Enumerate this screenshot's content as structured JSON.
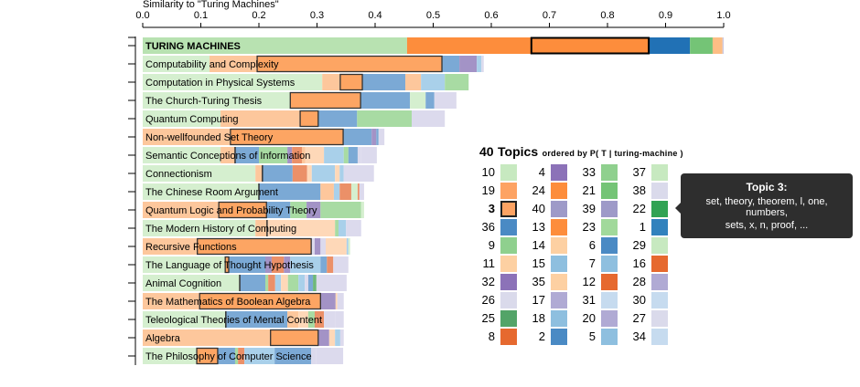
{
  "chart_data": {
    "type": "bar",
    "stacked": true,
    "orientation": "horizontal",
    "xlabel": "Similarity to \"Turing Machines\"",
    "xlim": [
      0,
      1
    ],
    "xticks": [
      "0.0",
      "0.1",
      "0.2",
      "0.3",
      "0.4",
      "0.5",
      "0.6",
      "0.7",
      "0.8",
      "0.9",
      "1.0"
    ],
    "highlight_topic": 3,
    "colors": {
      "lg": "#d5efcf",
      "lo": "#fdc79c",
      "t3": "#fda563",
      "b": "#7ba9d5",
      "p": "#a393c6",
      "lb": "#a9d0ea",
      "li": "#dcdaed",
      "g": "#a8dba3",
      "s": "#eb9068",
      "pe": "#fed8b8",
      "dg": "#6fb87b",
      "F_lg": "#b8e2b1",
      "F_o": "#fd8d3c",
      "F_b": "#2171b5",
      "F_g": "#74c476",
      "F_lo": "#fdbe85",
      "F_li": "#cbc9e2"
    },
    "rows": [
      {
        "label": "TURING MACHINES",
        "bold": true,
        "segments": [
          [
            0.455,
            "F_lg"
          ],
          [
            0.669,
            "F_o"
          ],
          [
            0.871,
            "F_o"
          ],
          [
            0.942,
            "F_b"
          ],
          [
            0.981,
            "F_g"
          ],
          [
            0.998,
            "F_lo"
          ],
          [
            1.0,
            "F_li"
          ]
        ],
        "t3": [
          0.669,
          0.871
        ]
      },
      {
        "label": "Computability and Complexity",
        "segments": [
          [
            0.115,
            "lg"
          ],
          [
            0.197,
            "lo"
          ],
          [
            0.515,
            "t3"
          ],
          [
            0.545,
            "b"
          ],
          [
            0.575,
            "p"
          ],
          [
            0.583,
            "lb"
          ],
          [
            0.587,
            "li"
          ]
        ],
        "t3": [
          0.197,
          0.515
        ]
      },
      {
        "label": "Computation in Physical Systems",
        "segments": [
          [
            0.309,
            "lg"
          ],
          [
            0.34,
            "lo"
          ],
          [
            0.378,
            "t3"
          ],
          [
            0.452,
            "b"
          ],
          [
            0.479,
            "lo"
          ],
          [
            0.52,
            "lb"
          ],
          [
            0.561,
            "g"
          ]
        ],
        "t3": [
          0.34,
          0.378
        ]
      },
      {
        "label": "The Church-Turing Thesis",
        "segments": [
          [
            0.254,
            "lg"
          ],
          [
            0.375,
            "t3"
          ],
          [
            0.46,
            "b"
          ],
          [
            0.487,
            "lg"
          ],
          [
            0.502,
            "b"
          ],
          [
            0.54,
            "li"
          ]
        ],
        "t3": [
          0.254,
          0.375
        ]
      },
      {
        "label": "Quantum Computing",
        "segments": [
          [
            0.134,
            "lg"
          ],
          [
            0.271,
            "lo"
          ],
          [
            0.302,
            "t3"
          ],
          [
            0.369,
            "b"
          ],
          [
            0.463,
            "g"
          ],
          [
            0.52,
            "li"
          ]
        ],
        "t3": [
          0.271,
          0.302
        ]
      },
      {
        "label": "Non-wellfounded Set Theory",
        "segments": [
          [
            0.151,
            "lo"
          ],
          [
            0.345,
            "t3"
          ],
          [
            0.394,
            "b"
          ],
          [
            0.402,
            "p"
          ],
          [
            0.406,
            "b"
          ],
          [
            0.416,
            "li"
          ]
        ],
        "t3": [
          0.151,
          0.345
        ]
      },
      {
        "label": "Semantic Conceptions of Information",
        "segments": [
          [
            0.134,
            "lg"
          ],
          [
            0.159,
            "lo"
          ],
          [
            0.2,
            "b"
          ],
          [
            0.249,
            "g"
          ],
          [
            0.257,
            "p"
          ],
          [
            0.274,
            "s"
          ],
          [
            0.28,
            "lo"
          ],
          [
            0.312,
            "pe"
          ],
          [
            0.346,
            "lb"
          ],
          [
            0.354,
            "g"
          ],
          [
            0.37,
            "b"
          ],
          [
            0.376,
            "li"
          ],
          [
            0.403,
            "li"
          ]
        ],
        "t3": [
          0.159,
          0.159
        ]
      },
      {
        "label": "Connectionism",
        "segments": [
          [
            0.194,
            "lg"
          ],
          [
            0.206,
            "lo"
          ],
          [
            0.258,
            "b"
          ],
          [
            0.283,
            "s"
          ],
          [
            0.291,
            "pe"
          ],
          [
            0.331,
            "lb"
          ],
          [
            0.339,
            "pe"
          ],
          [
            0.346,
            "lb"
          ],
          [
            0.398,
            "li"
          ]
        ],
        "t3": [
          0.206,
          0.206
        ]
      },
      {
        "label": "The Chinese Room Argument",
        "segments": [
          [
            0.2,
            "lg"
          ],
          [
            0.306,
            "b"
          ],
          [
            0.329,
            "lo"
          ],
          [
            0.339,
            "lb"
          ],
          [
            0.359,
            "s"
          ],
          [
            0.37,
            "lg"
          ],
          [
            0.373,
            "s"
          ],
          [
            0.381,
            "li"
          ]
        ],
        "t3": [
          0.2,
          0.2
        ]
      },
      {
        "label": "Quantum Logic and Probability Theory",
        "segments": [
          [
            0.131,
            "lo"
          ],
          [
            0.213,
            "t3"
          ],
          [
            0.254,
            "b"
          ],
          [
            0.282,
            "g"
          ],
          [
            0.306,
            "p"
          ],
          [
            0.376,
            "g"
          ],
          [
            0.381,
            "lg"
          ]
        ],
        "t3": [
          0.131,
          0.213
        ]
      },
      {
        "label": "The Modern History of Computing",
        "segments": [
          [
            0.194,
            "lg"
          ],
          [
            0.214,
            "lo"
          ],
          [
            0.331,
            "pe"
          ],
          [
            0.337,
            "g"
          ],
          [
            0.35,
            "lb"
          ],
          [
            0.376,
            "li"
          ]
        ],
        "t3": [
          0.214,
          0.214
        ]
      },
      {
        "label": "Recursive Functions",
        "segments": [
          [
            0.094,
            "lo"
          ],
          [
            0.29,
            "t3"
          ],
          [
            0.296,
            "li"
          ],
          [
            0.306,
            "p"
          ],
          [
            0.315,
            "li"
          ],
          [
            0.351,
            "pe"
          ],
          [
            0.354,
            "lb"
          ],
          [
            0.357,
            "lg"
          ]
        ],
        "t3": [
          0.094,
          0.29
        ]
      },
      {
        "label": "The Language of Thought Hypothesis",
        "segments": [
          [
            0.142,
            "lg"
          ],
          [
            0.148,
            "t3"
          ],
          [
            0.211,
            "b"
          ],
          [
            0.222,
            "p"
          ],
          [
            0.243,
            "s"
          ],
          [
            0.254,
            "p"
          ],
          [
            0.306,
            "lb"
          ],
          [
            0.317,
            "b"
          ],
          [
            0.328,
            "s"
          ],
          [
            0.354,
            "li"
          ]
        ],
        "t3": [
          0.142,
          0.148
        ]
      },
      {
        "label": "Animal Cognition",
        "segments": [
          [
            0.167,
            "lg"
          ],
          [
            0.211,
            "b"
          ],
          [
            0.216,
            "g"
          ],
          [
            0.228,
            "s"
          ],
          [
            0.238,
            "lb"
          ],
          [
            0.25,
            "pe"
          ],
          [
            0.268,
            "g"
          ],
          [
            0.279,
            "lb"
          ],
          [
            0.285,
            "li"
          ],
          [
            0.293,
            "b"
          ],
          [
            0.299,
            "dg"
          ],
          [
            0.351,
            "li"
          ]
        ],
        "t3": [
          0.167,
          0.167
        ]
      },
      {
        "label": "The Mathematics of Boolean Algebra",
        "segments": [
          [
            0.098,
            "lo"
          ],
          [
            0.306,
            "t3"
          ],
          [
            0.332,
            "p"
          ],
          [
            0.335,
            "pe"
          ],
          [
            0.346,
            "li"
          ]
        ],
        "t3": [
          0.098,
          0.306
        ]
      },
      {
        "label": "Teleological Theories of Mental Content",
        "segments": [
          [
            0.143,
            "lg"
          ],
          [
            0.249,
            "b"
          ],
          [
            0.268,
            "lo"
          ],
          [
            0.285,
            "pe"
          ],
          [
            0.296,
            "g"
          ],
          [
            0.312,
            "s"
          ],
          [
            0.315,
            "li"
          ],
          [
            0.331,
            "li"
          ],
          [
            0.346,
            "li"
          ]
        ],
        "t3": [
          0.143,
          0.143
        ]
      },
      {
        "label": "Algebra",
        "segments": [
          [
            0.22,
            "lo"
          ],
          [
            0.302,
            "t3"
          ],
          [
            0.321,
            "p"
          ],
          [
            0.331,
            "pe"
          ],
          [
            0.34,
            "lb"
          ],
          [
            0.346,
            "li"
          ]
        ],
        "t3": [
          0.22,
          0.302
        ]
      },
      {
        "label": "The Philosophy of Computer Science",
        "segments": [
          [
            0.093,
            "lg"
          ],
          [
            0.129,
            "t3"
          ],
          [
            0.159,
            "b"
          ],
          [
            0.164,
            "g"
          ],
          [
            0.175,
            "s"
          ],
          [
            0.227,
            "lb"
          ],
          [
            0.29,
            "b"
          ],
          [
            0.299,
            "li"
          ],
          [
            0.345,
            "li"
          ]
        ],
        "t3": [
          0.093,
          0.129
        ]
      }
    ]
  },
  "legend": {
    "count": "40",
    "title": "Topics",
    "subtitle": "ordered by P( T | turing-machine )",
    "selected": "3",
    "columns": [
      [
        [
          "10",
          "#c7e9c0"
        ],
        [
          "19",
          "#fda363"
        ],
        [
          "3",
          "#fda363"
        ],
        [
          "36",
          "#4a8ac4"
        ],
        [
          "9",
          "#8fd08e"
        ],
        [
          "11",
          "#fdd0a2"
        ],
        [
          "32",
          "#8c72b8"
        ],
        [
          "26",
          "#dadaeb"
        ],
        [
          "25",
          "#53a468"
        ],
        [
          "8",
          "#e6692f"
        ]
      ],
      [
        [
          "4",
          "#8c72b8"
        ],
        [
          "24",
          "#fd8d3c"
        ],
        [
          "40",
          "#9e9ac8"
        ],
        [
          "13",
          "#fd8d3c"
        ],
        [
          "14",
          "#fdd0a2"
        ],
        [
          "15",
          "#8ebfdf"
        ],
        [
          "35",
          "#fdd0a2"
        ],
        [
          "17",
          "#b0aad4"
        ],
        [
          "18",
          "#8ebfdf"
        ],
        [
          "2",
          "#4a8ac4"
        ]
      ],
      [
        [
          "33",
          "#8fd08e"
        ],
        [
          "21",
          "#74c476"
        ],
        [
          "39",
          "#9e9ac8"
        ],
        [
          "23",
          "#a1d99b"
        ],
        [
          "6",
          "#4a8ac4"
        ],
        [
          "7",
          "#8ebfdf"
        ],
        [
          "12",
          "#e6692f"
        ],
        [
          "31",
          "#c6dbef"
        ],
        [
          "20",
          "#b0aad4"
        ],
        [
          "5",
          "#8ebfdf"
        ]
      ],
      [
        [
          "37",
          "#c7e9c0"
        ],
        [
          "38",
          "#dadaeb"
        ],
        [
          "22",
          "#31a354"
        ],
        [
          "1",
          "#3182bd"
        ],
        [
          "29",
          "#c7e9c0"
        ],
        [
          "16",
          "#e6692f"
        ],
        [
          "28",
          "#b0aad4"
        ],
        [
          "30",
          "#c6dbef"
        ],
        [
          "27",
          "#dadaeb"
        ],
        [
          "34",
          "#c6dbef"
        ]
      ]
    ]
  },
  "tooltip": {
    "title": "Topic 3:",
    "line1": "set, theory, theorem, l, one, numbers,",
    "line2": "sets, x, n, proof, ..."
  }
}
